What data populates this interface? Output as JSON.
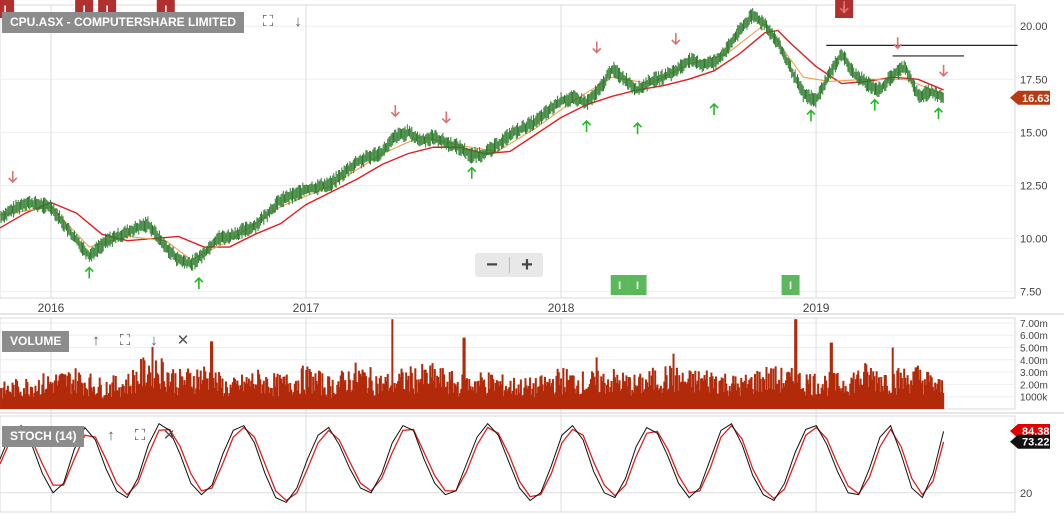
{
  "header": {
    "symbol_label": "CPU.ASX - COMPUTERSHARE LIMITED"
  },
  "panels": {
    "volume_label": "VOLUME",
    "stoch_label": "STOCH (14)"
  },
  "icons": {
    "fullscreen": "expand-icon",
    "down": "arrow-down-icon",
    "up": "arrow-up-icon",
    "close": "close-icon",
    "zoom_out": "minus-icon",
    "zoom_in": "plus-icon"
  },
  "glyphs": {
    "fullscreen": "⛶",
    "down": "↓",
    "up": "↑",
    "close": "✕",
    "zoom_out": "−",
    "zoom_in": "+",
    "event_marker": "I"
  },
  "colors": {
    "price_line": "#2b7a2b",
    "ma_short": "#f0a050",
    "ma_long": "#e02020",
    "volume": "#b22a0a",
    "stoch_k": "#111111",
    "stoch_d": "#e02020",
    "signal_down": "#e07070",
    "signal_up": "#22bb22",
    "event_red": "#b03030",
    "event_green": "#5cb85c",
    "price_tag": "#b83a12",
    "stoch_tag_k": "#111111",
    "stoch_tag_d": "#e00000"
  },
  "chart_data": [
    {
      "type": "line",
      "title": "CPU.ASX - COMPUTERSHARE LIMITED",
      "x_tick_labels": [
        "2016",
        "2017",
        "2018",
        "2019"
      ],
      "x_ticks": [
        2016.0,
        2017.0,
        2018.0,
        2019.0
      ],
      "xlim": [
        2015.8,
        2019.78
      ],
      "y_tick_labels": [
        "7.50",
        "10.00",
        "12.50",
        "15.00",
        "17.50",
        "20.00"
      ],
      "y_ticks": [
        7.5,
        10.0,
        12.5,
        15.0,
        17.5,
        20.0
      ],
      "ylim": [
        7.2,
        21.0
      ],
      "grid": true,
      "series": [
        {
          "role": "price",
          "x": [
            2015.8,
            2015.9,
            2016.0,
            2016.08,
            2016.15,
            2016.22,
            2016.3,
            2016.38,
            2016.45,
            2016.5,
            2016.55,
            2016.6,
            2016.65,
            2016.7,
            2016.8,
            2016.9,
            2017.0,
            2017.1,
            2017.2,
            2017.3,
            2017.35,
            2017.4,
            2017.45,
            2017.5,
            2017.55,
            2017.6,
            2017.65,
            2017.7,
            2017.75,
            2017.8,
            2017.9,
            2018.0,
            2018.05,
            2018.1,
            2018.15,
            2018.2,
            2018.25,
            2018.3,
            2018.35,
            2018.4,
            2018.45,
            2018.5,
            2018.55,
            2018.6,
            2018.65,
            2018.7,
            2018.75,
            2018.8,
            2018.85,
            2018.9,
            2018.95,
            2019.0,
            2019.05,
            2019.1,
            2019.15,
            2019.2,
            2019.25,
            2019.3,
            2019.35,
            2019.4,
            2019.45,
            2019.5
          ],
          "y": [
            11.0,
            11.7,
            11.5,
            10.2,
            9.2,
            9.9,
            10.3,
            10.7,
            9.6,
            9.0,
            8.8,
            9.3,
            10.0,
            10.1,
            10.6,
            11.8,
            12.3,
            12.6,
            13.6,
            14.1,
            14.8,
            15.0,
            14.6,
            14.8,
            14.5,
            14.3,
            13.9,
            14.0,
            14.4,
            14.9,
            15.5,
            16.5,
            16.6,
            16.4,
            17.0,
            18.0,
            17.5,
            17.0,
            17.4,
            17.6,
            17.9,
            18.4,
            18.2,
            18.3,
            18.9,
            19.8,
            20.5,
            20.1,
            19.2,
            18.0,
            16.8,
            16.5,
            17.7,
            18.7,
            17.7,
            17.3,
            17.0,
            17.7,
            18.1,
            16.7,
            16.9,
            16.63
          ]
        },
        {
          "role": "moving-average-short",
          "x": [
            2015.8,
            2016.0,
            2016.15,
            2016.3,
            2016.45,
            2016.55,
            2016.7,
            2016.9,
            2017.1,
            2017.3,
            2017.45,
            2017.6,
            2017.75,
            2017.9,
            2018.05,
            2018.2,
            2018.35,
            2018.5,
            2018.65,
            2018.8,
            2018.95,
            2019.05,
            2019.2,
            2019.35,
            2019.5
          ],
          "y": [
            11.1,
            11.5,
            9.6,
            10.1,
            9.9,
            9.0,
            9.9,
            11.5,
            12.5,
            14.0,
            14.8,
            14.4,
            14.1,
            15.2,
            16.5,
            17.6,
            17.3,
            18.2,
            18.7,
            20.1,
            17.6,
            17.4,
            17.5,
            17.5,
            16.8
          ]
        },
        {
          "role": "moving-average-long",
          "x": [
            2015.8,
            2015.9,
            2016.0,
            2016.1,
            2016.2,
            2016.3,
            2016.4,
            2016.5,
            2016.6,
            2016.7,
            2016.8,
            2016.9,
            2017.0,
            2017.1,
            2017.2,
            2017.3,
            2017.4,
            2017.5,
            2017.6,
            2017.7,
            2017.8,
            2017.9,
            2018.0,
            2018.1,
            2018.2,
            2018.3,
            2018.4,
            2018.5,
            2018.6,
            2018.7,
            2018.8,
            2018.85,
            2018.9,
            2019.0,
            2019.1,
            2019.2,
            2019.3,
            2019.4,
            2019.5
          ],
          "y": [
            10.5,
            11.2,
            11.7,
            11.2,
            10.2,
            9.9,
            10.0,
            10.1,
            9.6,
            9.6,
            10.2,
            10.7,
            11.6,
            12.2,
            12.8,
            13.5,
            14.0,
            14.3,
            14.3,
            14.0,
            14.1,
            14.9,
            15.7,
            16.3,
            16.7,
            17.0,
            17.2,
            17.5,
            17.9,
            18.7,
            19.7,
            19.8,
            19.2,
            18.1,
            17.3,
            17.4,
            17.6,
            17.5,
            17.0
          ]
        }
      ],
      "signals_down": [
        {
          "x": 2015.85,
          "y": 12.9
        },
        {
          "x": 2017.35,
          "y": 16.0
        },
        {
          "x": 2017.55,
          "y": 15.7
        },
        {
          "x": 2018.14,
          "y": 19.0
        },
        {
          "x": 2018.45,
          "y": 19.4
        },
        {
          "x": 2018.75,
          "y": 21.5
        },
        {
          "x": 2019.11,
          "y": 20.9
        },
        {
          "x": 2019.32,
          "y": 19.2
        },
        {
          "x": 2019.5,
          "y": 17.9
        }
      ],
      "signals_up": [
        {
          "x": 2016.15,
          "y": 8.4
        },
        {
          "x": 2016.58,
          "y": 7.9
        },
        {
          "x": 2017.65,
          "y": 13.1
        },
        {
          "x": 2018.1,
          "y": 15.3
        },
        {
          "x": 2018.3,
          "y": 15.2
        },
        {
          "x": 2018.6,
          "y": 16.1
        },
        {
          "x": 2018.98,
          "y": 15.8
        },
        {
          "x": 2019.23,
          "y": 16.3
        },
        {
          "x": 2019.48,
          "y": 15.9
        }
      ],
      "resistance_lines": [
        {
          "x1": 2019.04,
          "x2": 2019.79,
          "y": 19.1
        },
        {
          "x1": 2019.3,
          "x2": 2019.58,
          "y": 18.6
        }
      ],
      "event_markers_top": [
        2015.82,
        2016.13,
        2016.22,
        2016.45,
        2019.11
      ],
      "event_markers_bottom": [
        2018.23,
        2018.3,
        2018.9
      ],
      "last_price": {
        "label": "16.63",
        "value": 16.63
      }
    },
    {
      "type": "bar",
      "title": "VOLUME",
      "y_tick_labels": [
        "1000k",
        "2.00m",
        "3.00m",
        "4.00m",
        "5.00m",
        "6.00m",
        "7.00m"
      ],
      "y_ticks": [
        1.0,
        2.0,
        3.0,
        4.0,
        5.0,
        6.0,
        7.0
      ],
      "ylim": [
        0,
        7.4
      ],
      "x": [
        2015.8,
        2015.9,
        2016.0,
        2016.1,
        2016.2,
        2016.3,
        2016.4,
        2016.5,
        2016.6,
        2016.7,
        2016.8,
        2016.9,
        2017.0,
        2017.1,
        2017.2,
        2017.3,
        2017.4,
        2017.5,
        2017.6,
        2017.7,
        2017.8,
        2017.9,
        2018.0,
        2018.1,
        2018.2,
        2018.3,
        2018.4,
        2018.5,
        2018.6,
        2018.7,
        2018.8,
        2018.9,
        2019.0,
        2019.1,
        2019.2,
        2019.3,
        2019.4,
        2019.5
      ],
      "values": [
        1.6,
        2.0,
        2.3,
        2.6,
        1.9,
        2.2,
        3.8,
        2.4,
        2.9,
        1.8,
        2.5,
        2.1,
        2.7,
        2.0,
        2.9,
        2.2,
        2.6,
        2.8,
        2.1,
        2.4,
        2.0,
        1.9,
        2.6,
        2.3,
        2.5,
        2.1,
        2.8,
        2.4,
        2.6,
        2.0,
        2.7,
        2.5,
        2.3,
        2.2,
        2.9,
        2.5,
        2.8,
        1.8
      ],
      "spikes": [
        {
          "x": 2016.63,
          "v": 5.5
        },
        {
          "x": 2017.34,
          "v": 7.3
        },
        {
          "x": 2017.62,
          "v": 5.8
        },
        {
          "x": 2018.14,
          "v": 4.2
        },
        {
          "x": 2018.44,
          "v": 4.5
        },
        {
          "x": 2018.92,
          "v": 7.3
        },
        {
          "x": 2019.06,
          "v": 5.4
        },
        {
          "x": 2019.3,
          "v": 5.0
        }
      ]
    },
    {
      "type": "line",
      "title": "STOCH (14)",
      "y_tick_labels": [
        "20"
      ],
      "y_ticks": [
        20
      ],
      "ylim": [
        0,
        100
      ],
      "x_start": 2015.8,
      "x_end": 2019.5,
      "k": [
        55,
        82,
        90,
        70,
        40,
        20,
        30,
        65,
        88,
        75,
        45,
        22,
        15,
        35,
        70,
        92,
        85,
        60,
        30,
        18,
        28,
        60,
        85,
        90,
        72,
        40,
        15,
        10,
        25,
        55,
        80,
        88,
        70,
        45,
        25,
        20,
        40,
        72,
        90,
        85,
        55,
        30,
        18,
        22,
        50,
        78,
        92,
        80,
        52,
        25,
        12,
        20,
        48,
        80,
        90,
        75,
        42,
        20,
        15,
        35,
        68,
        88,
        82,
        58,
        30,
        15,
        25,
        55,
        85,
        92,
        70,
        38,
        18,
        12,
        30,
        62,
        86,
        90,
        70,
        42,
        20,
        18,
        45,
        78,
        90,
        60,
        25,
        15,
        40,
        84
      ],
      "d": [
        50,
        75,
        86,
        75,
        50,
        28,
        28,
        55,
        80,
        78,
        55,
        30,
        18,
        30,
        60,
        85,
        86,
        68,
        40,
        22,
        25,
        50,
        78,
        88,
        78,
        50,
        22,
        12,
        20,
        45,
        72,
        85,
        75,
        52,
        30,
        22,
        35,
        62,
        85,
        86,
        62,
        38,
        22,
        22,
        42,
        70,
        88,
        82,
        60,
        32,
        16,
        18,
        40,
        72,
        86,
        80,
        52,
        28,
        17,
        28,
        58,
        82,
        84,
        65,
        38,
        20,
        22,
        46,
        78,
        90,
        76,
        45,
        24,
        14,
        24,
        52,
        80,
        88,
        76,
        50,
        27,
        19,
        36,
        68,
        86,
        68,
        35,
        18,
        32,
        73
      ],
      "last_k": {
        "label": "84.38",
        "value": 84.38
      },
      "last_d": {
        "label": "73.22",
        "value": 73.22
      }
    }
  ]
}
